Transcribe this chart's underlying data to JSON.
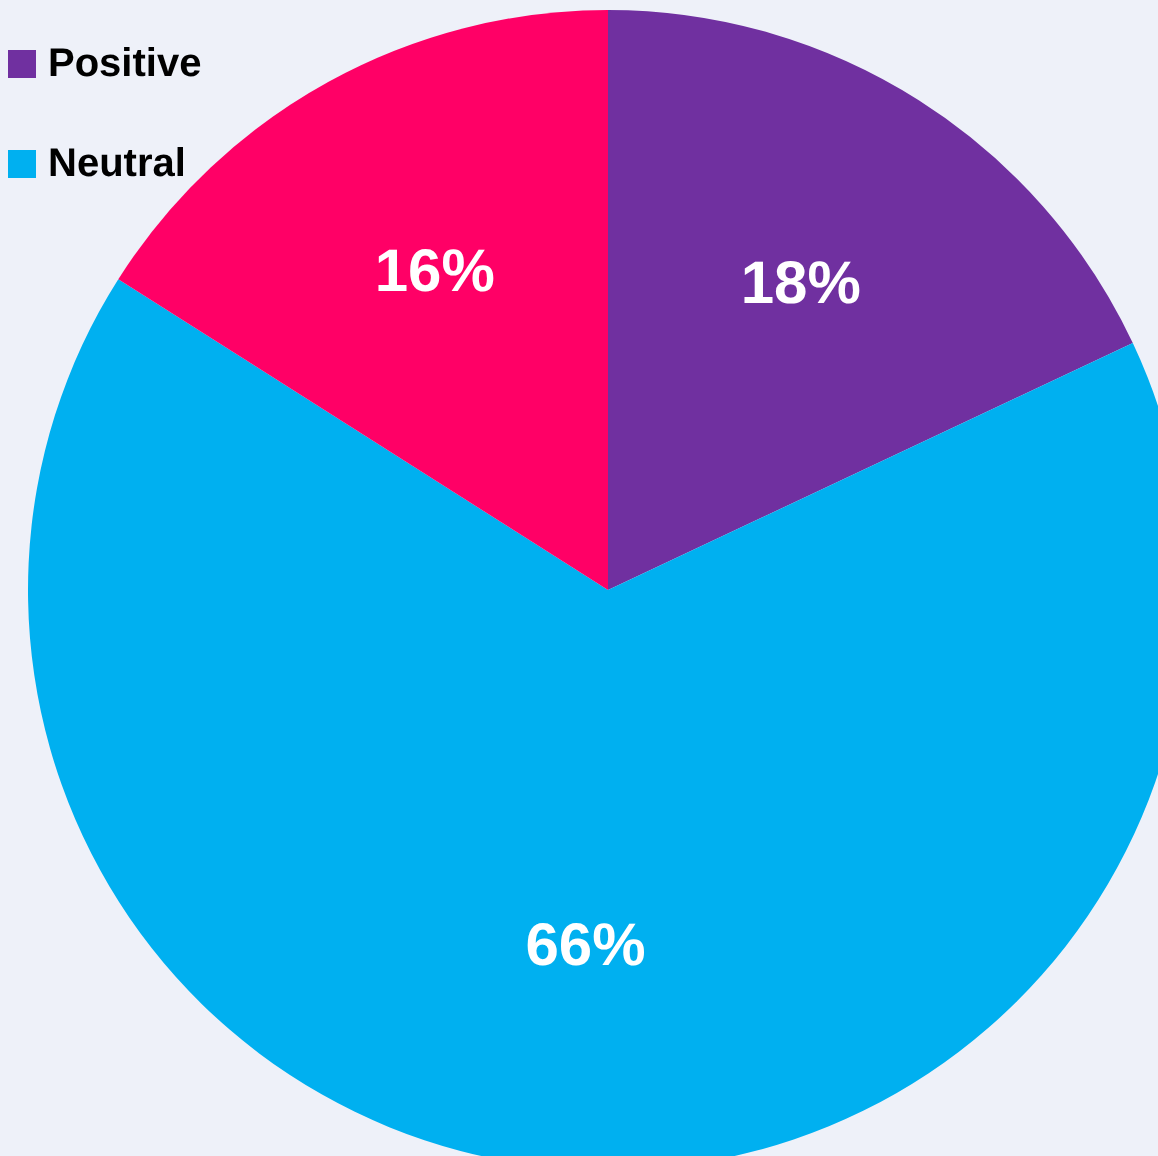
{
  "chart_data": {
    "type": "pie",
    "categories": [
      "Positive",
      "Neutral",
      null
    ],
    "values": [
      18,
      66,
      16
    ],
    "colors": [
      "#7030a0",
      "#00b0f0",
      "#ff0066"
    ],
    "value_labels": [
      "18%",
      "66%",
      "16%"
    ],
    "legend": "top left"
  }
}
